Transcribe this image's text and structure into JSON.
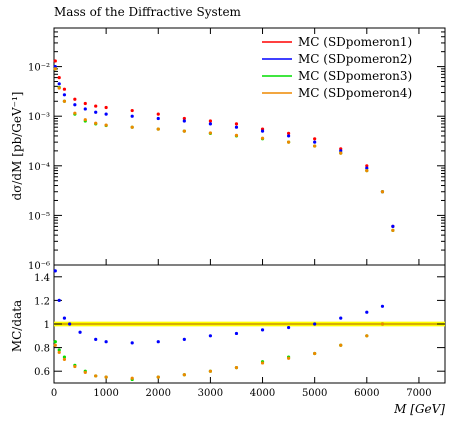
{
  "chart_data": [
    {
      "type": "scatter",
      "title": "Mass of the Diffractive System",
      "ylabel": "dσ/dM [pb/GeV⁻¹]",
      "yscale": "log",
      "xlim": [
        0,
        7500
      ],
      "ylim": [
        1e-06,
        0.06
      ],
      "ytick_labels": [
        "10⁻⁶",
        "10⁻⁵",
        "10⁻⁴",
        "10⁻³",
        "10⁻²"
      ],
      "legend_position": "top-right",
      "series": [
        {
          "name": "MC (SDpomeron1)",
          "color": "#ff0000",
          "points": [
            [
              25,
              0.013
            ],
            [
              100,
              0.006
            ],
            [
              200,
              0.0035
            ],
            [
              400,
              0.0022
            ],
            [
              600,
              0.0018
            ],
            [
              800,
              0.0016
            ],
            [
              1000,
              0.0015
            ],
            [
              1500,
              0.0013
            ],
            [
              2000,
              0.0011
            ],
            [
              2500,
              0.0009
            ],
            [
              3000,
              0.0008
            ],
            [
              3500,
              0.0007
            ],
            [
              4000,
              0.00055
            ],
            [
              4500,
              0.00045
            ],
            [
              5000,
              0.00035
            ],
            [
              5500,
              0.00022
            ],
            [
              6000,
              0.0001
            ],
            [
              6300,
              3e-05
            ],
            [
              6500,
              6e-06
            ]
          ]
        },
        {
          "name": "MC (SDpomeron2)",
          "color": "#0000ff",
          "points": [
            [
              25,
              0.01
            ],
            [
              100,
              0.0045
            ],
            [
              200,
              0.0027
            ],
            [
              400,
              0.0017
            ],
            [
              600,
              0.0014
            ],
            [
              800,
              0.0012
            ],
            [
              1000,
              0.0011
            ],
            [
              1500,
              0.001
            ],
            [
              2000,
              0.0009
            ],
            [
              2500,
              0.0008
            ],
            [
              3000,
              0.0007
            ],
            [
              3500,
              0.0006
            ],
            [
              4000,
              0.0005
            ],
            [
              4500,
              0.0004
            ],
            [
              5000,
              0.0003
            ],
            [
              5500,
              0.0002
            ],
            [
              6000,
              9e-05
            ],
            [
              6300,
              3e-05
            ],
            [
              6500,
              6e-06
            ]
          ]
        },
        {
          "name": "MC (SDpomeron3)",
          "color": "#00dd00",
          "points": [
            [
              25,
              0.009
            ],
            [
              100,
              0.0038
            ],
            [
              200,
              0.002
            ],
            [
              400,
              0.0011
            ],
            [
              600,
              0.0008
            ],
            [
              800,
              0.0007
            ],
            [
              1000,
              0.00065
            ],
            [
              1500,
              0.0006
            ],
            [
              2000,
              0.00055
            ],
            [
              2500,
              0.0005
            ],
            [
              3000,
              0.00045
            ],
            [
              3500,
              0.0004
            ],
            [
              4000,
              0.00035
            ],
            [
              4500,
              0.0003
            ],
            [
              5000,
              0.00025
            ],
            [
              5500,
              0.00018
            ],
            [
              6000,
              8e-05
            ],
            [
              6300,
              3e-05
            ],
            [
              6500,
              5e-06
            ]
          ]
        },
        {
          "name": "MC (SDpomeron4)",
          "color": "#ee8800",
          "points": [
            [
              25,
              0.009
            ],
            [
              100,
              0.0037
            ],
            [
              200,
              0.002
            ],
            [
              400,
              0.00115
            ],
            [
              600,
              0.00085
            ],
            [
              800,
              0.00072
            ],
            [
              1000,
              0.00066
            ],
            [
              1500,
              0.0006
            ],
            [
              2000,
              0.00055
            ],
            [
              2500,
              0.0005
            ],
            [
              3000,
              0.00046
            ],
            [
              3500,
              0.00041
            ],
            [
              4000,
              0.00036
            ],
            [
              4500,
              0.0003
            ],
            [
              5000,
              0.00025
            ],
            [
              5500,
              0.00018
            ],
            [
              6000,
              8e-05
            ],
            [
              6300,
              3e-05
            ],
            [
              6500,
              5e-06
            ]
          ]
        }
      ]
    },
    {
      "type": "scatter",
      "xlabel": "M [GeV]",
      "ylabel": "MC/data",
      "xlim": [
        0,
        7500
      ],
      "ylim": [
        0.5,
        1.5
      ],
      "x_ticks": [
        0,
        1000,
        2000,
        3000,
        4000,
        5000,
        6000,
        7000
      ],
      "y_ticks": [
        0.6,
        0.8,
        1,
        1.2,
        1.4
      ],
      "reference_line": 1,
      "uncertainty_band_color": "#ffff00",
      "series": [
        {
          "name": "MC (SDpomeron1)",
          "color": "#ff0000",
          "points": []
        },
        {
          "name": "MC (SDpomeron2)",
          "color": "#0000ff",
          "points": [
            [
              25,
              1.45
            ],
            [
              100,
              1.2
            ],
            [
              200,
              1.05
            ],
            [
              300,
              1.0
            ],
            [
              500,
              0.93
            ],
            [
              800,
              0.87
            ],
            [
              1000,
              0.85
            ],
            [
              1500,
              0.84
            ],
            [
              2000,
              0.85
            ],
            [
              2500,
              0.87
            ],
            [
              3000,
              0.9
            ],
            [
              3500,
              0.92
            ],
            [
              4000,
              0.95
            ],
            [
              4500,
              0.97
            ],
            [
              5000,
              1.0
            ],
            [
              5500,
              1.05
            ],
            [
              6000,
              1.1
            ],
            [
              6300,
              1.15
            ]
          ]
        },
        {
          "name": "MC (SDpomeron3)",
          "color": "#00dd00",
          "points": [
            [
              25,
              0.85
            ],
            [
              100,
              0.78
            ],
            [
              200,
              0.72
            ],
            [
              400,
              0.65
            ],
            [
              600,
              0.6
            ],
            [
              800,
              0.56
            ],
            [
              1000,
              0.55
            ],
            [
              1500,
              0.53
            ],
            [
              2000,
              0.55
            ],
            [
              2500,
              0.57
            ],
            [
              3000,
              0.6
            ],
            [
              3500,
              0.63
            ],
            [
              4000,
              0.68
            ],
            [
              4500,
              0.72
            ],
            [
              5000,
              0.75
            ],
            [
              5500,
              0.82
            ],
            [
              6000,
              0.9
            ],
            [
              6300,
              1.0
            ]
          ]
        },
        {
          "name": "MC (SDpomeron4)",
          "color": "#ee8800",
          "points": [
            [
              25,
              0.82
            ],
            [
              100,
              0.76
            ],
            [
              200,
              0.7
            ],
            [
              400,
              0.64
            ],
            [
              600,
              0.59
            ],
            [
              800,
              0.56
            ],
            [
              1000,
              0.55
            ],
            [
              1500,
              0.54
            ],
            [
              2000,
              0.55
            ],
            [
              2500,
              0.57
            ],
            [
              3000,
              0.6
            ],
            [
              3500,
              0.63
            ],
            [
              4000,
              0.67
            ],
            [
              4500,
              0.71
            ],
            [
              5000,
              0.75
            ],
            [
              5500,
              0.82
            ],
            [
              6000,
              0.9
            ],
            [
              6300,
              1.0
            ]
          ]
        }
      ]
    }
  ]
}
